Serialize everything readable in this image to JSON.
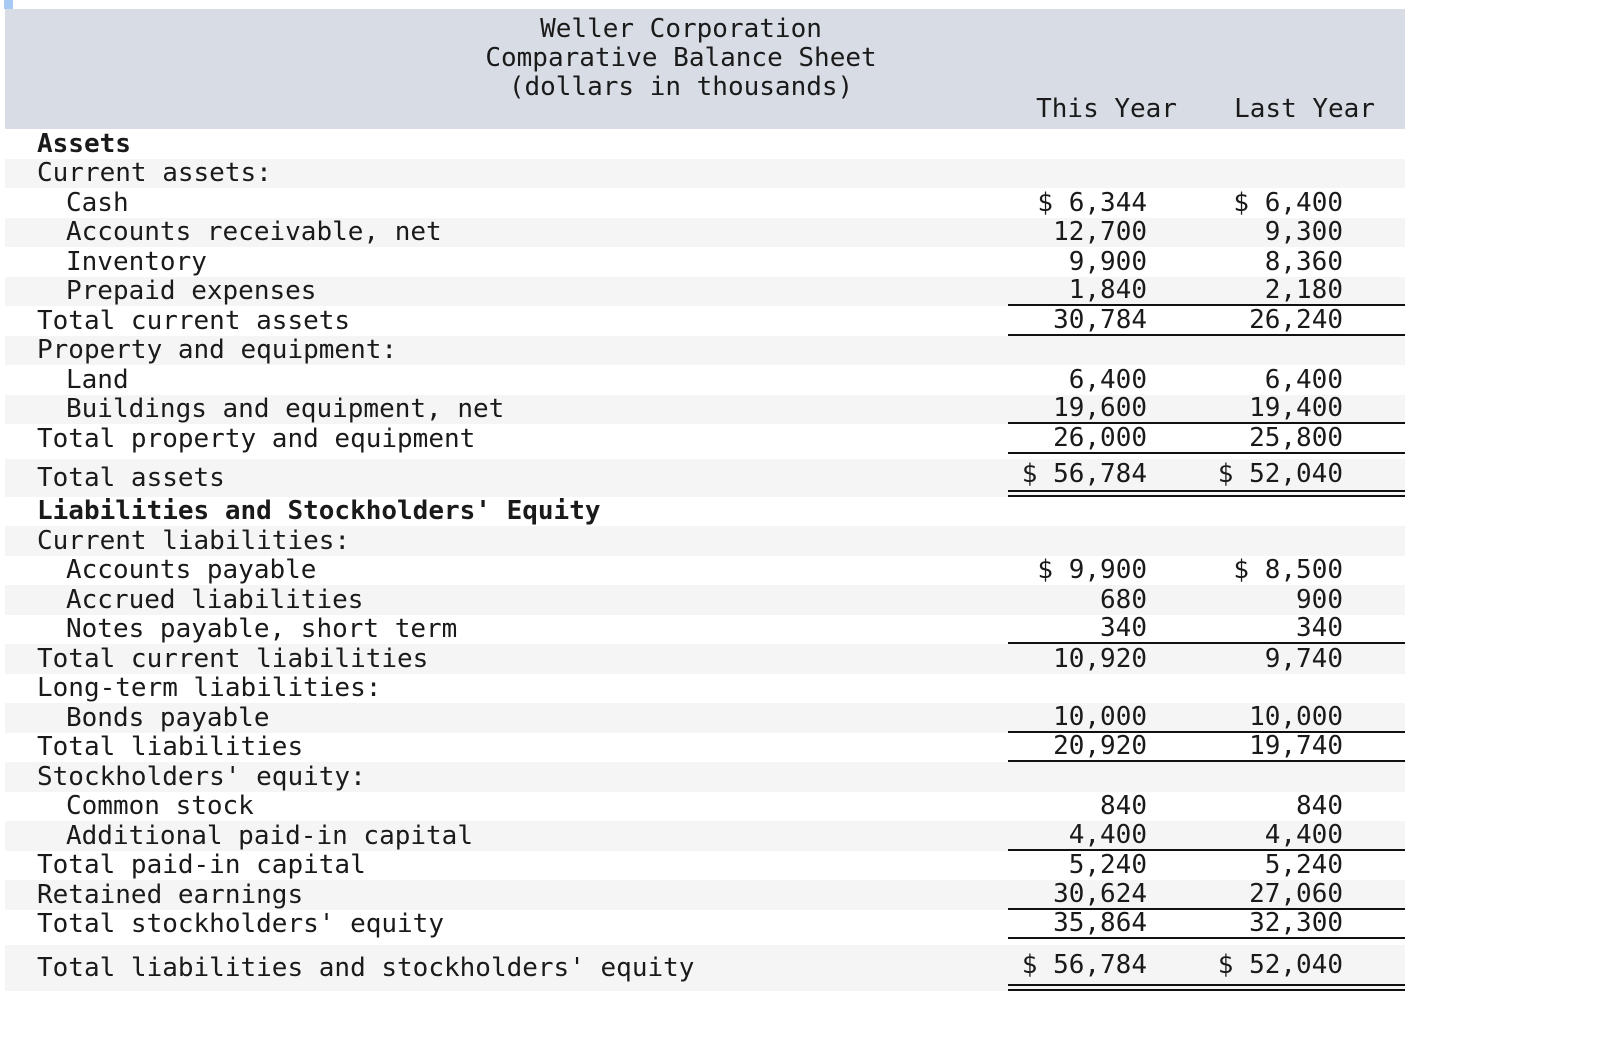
{
  "header": {
    "title_lines": [
      "Weller Corporation",
      "Comparative Balance Sheet",
      "(dollars in thousands)"
    ],
    "columns": [
      "This Year",
      "Last Year"
    ]
  },
  "table": {
    "rows": [
      {
        "label": "Assets",
        "indent": 0,
        "bold": true,
        "shade": false,
        "this_year": "",
        "last_year": ""
      },
      {
        "label": "Current assets:",
        "indent": 0,
        "shade": true,
        "this_year": "",
        "last_year": ""
      },
      {
        "label": "Cash",
        "indent": 1,
        "shade": false,
        "this_year": "$ 6,344",
        "last_year": "$ 6,400"
      },
      {
        "label": "Accounts receivable, net",
        "indent": 1,
        "shade": true,
        "this_year": "12,700",
        "last_year": "9,300"
      },
      {
        "label": "Inventory",
        "indent": 1,
        "shade": false,
        "this_year": "9,900",
        "last_year": "8,360"
      },
      {
        "label": "Prepaid expenses",
        "indent": 1,
        "shade": true,
        "this_year": "1,840",
        "last_year": "2,180",
        "rule": "single"
      },
      {
        "label": "Total current assets",
        "indent": 0,
        "shade": false,
        "this_year": "30,784",
        "last_year": "26,240",
        "rule": "single"
      },
      {
        "label": "Property and equipment:",
        "indent": 0,
        "shade": true,
        "this_year": "",
        "last_year": ""
      },
      {
        "label": "Land",
        "indent": 1,
        "shade": false,
        "this_year": "6,400",
        "last_year": "6,400"
      },
      {
        "label": "Buildings and equipment, net",
        "indent": 1,
        "shade": true,
        "this_year": "19,600",
        "last_year": "19,400",
        "rule": "single"
      },
      {
        "label": "Total property and equipment",
        "indent": 0,
        "shade": false,
        "this_year": "26,000",
        "last_year": "25,800",
        "rule": "single"
      },
      {
        "label": "Total assets",
        "indent": 0,
        "shade": true,
        "this_year": "$ 56,784",
        "last_year": "$ 52,040",
        "rule": "double",
        "size": "tall"
      },
      {
        "label": "Liabilities and Stockholders' Equity",
        "indent": 0,
        "bold": true,
        "shade": false,
        "this_year": "",
        "last_year": ""
      },
      {
        "label": "Current liabilities:",
        "indent": 0,
        "shade": true,
        "this_year": "",
        "last_year": ""
      },
      {
        "label": "Accounts payable",
        "indent": 1,
        "shade": false,
        "this_year": "$ 9,900",
        "last_year": "$ 8,500"
      },
      {
        "label": "Accrued liabilities",
        "indent": 1,
        "shade": true,
        "this_year": "680",
        "last_year": "900"
      },
      {
        "label": "Notes payable, short term",
        "indent": 1,
        "shade": false,
        "this_year": "340",
        "last_year": "340",
        "rule": "single"
      },
      {
        "label": "Total current liabilities",
        "indent": 0,
        "shade": true,
        "this_year": "10,920",
        "last_year": "9,740"
      },
      {
        "label": "Long-term liabilities:",
        "indent": 0,
        "shade": false,
        "this_year": "",
        "last_year": ""
      },
      {
        "label": "Bonds payable",
        "indent": 1,
        "shade": true,
        "this_year": "10,000",
        "last_year": "10,000",
        "rule": "single"
      },
      {
        "label": "Total liabilities",
        "indent": 0,
        "shade": false,
        "this_year": "20,920",
        "last_year": "19,740",
        "rule": "single"
      },
      {
        "label": "Stockholders' equity:",
        "indent": 0,
        "shade": true,
        "this_year": "",
        "last_year": ""
      },
      {
        "label": "Common stock",
        "indent": 1,
        "shade": false,
        "this_year": "840",
        "last_year": "840"
      },
      {
        "label": "Additional paid-in capital",
        "indent": 1,
        "shade": true,
        "this_year": "4,400",
        "last_year": "4,400",
        "rule": "single"
      },
      {
        "label": "Total paid-in capital",
        "indent": 0,
        "shade": false,
        "this_year": "5,240",
        "last_year": "5,240"
      },
      {
        "label": "Retained earnings",
        "indent": 0,
        "shade": true,
        "this_year": "30,624",
        "last_year": "27,060",
        "rule": "single"
      },
      {
        "label": "Total stockholders' equity",
        "indent": 0,
        "shade": false,
        "this_year": "35,864",
        "last_year": "32,300",
        "rule": "single"
      },
      {
        "label": "Total liabilities and stockholders' equity",
        "indent": 0,
        "shade": true,
        "this_year": "$ 56,784",
        "last_year": "$ 52,040",
        "rule": "double",
        "size": "tall2"
      }
    ]
  },
  "colors": {
    "band": "#d8dce4",
    "stripe": "#f5f5f6",
    "text": "#1a1a1a",
    "rule": "#111111",
    "artifact_blue": "#a6caf3"
  }
}
